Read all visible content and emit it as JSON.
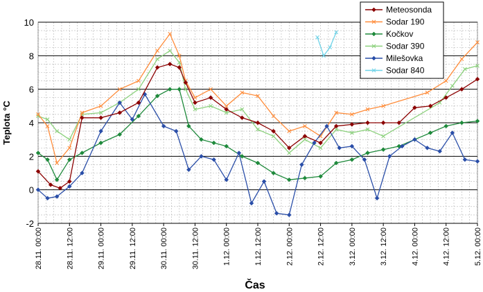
{
  "chart_data": {
    "type": "line",
    "title": "",
    "xlabel": "Čas",
    "ylabel": "Teplota °C",
    "ylim": [
      -2,
      10
    ],
    "yticks": [
      -2,
      0,
      2,
      4,
      6,
      8,
      10
    ],
    "xlim": [
      0,
      7
    ],
    "xtick_labels": [
      "28.11. 00:00",
      "28.11. 12:00",
      "29.11. 00:00",
      "29.11. 12:00",
      "30.11. 00:00",
      "30.11. 12:00",
      "1.12. 00:00",
      "1.12. 12:00",
      "2.12. 00:00",
      "2.12. 12:00",
      "3.12. 00:00",
      "3.12. 12:00",
      "4.12. 00:00",
      "4.12. 12:00",
      "5.12. 00:00"
    ],
    "grid": true,
    "legend_position": "top-right",
    "series": [
      {
        "name": "Meteosonda",
        "color": "#8b0000",
        "marker": "diamond",
        "x": [
          0.0,
          0.2,
          0.35,
          0.5,
          0.7,
          1.0,
          1.3,
          1.6,
          1.9,
          2.1,
          2.25,
          2.35,
          2.5,
          2.75,
          3.0,
          3.25,
          3.5,
          3.75,
          4.0,
          4.25,
          4.5,
          4.75,
          5.0,
          5.25,
          5.5,
          5.75,
          6.0,
          6.25,
          6.5,
          6.75,
          7.0
        ],
        "values": [
          1.1,
          0.3,
          0.1,
          0.5,
          4.3,
          4.3,
          4.6,
          5.2,
          7.3,
          7.5,
          7.3,
          6.4,
          5.2,
          5.5,
          4.8,
          4.3,
          4.0,
          3.5,
          2.5,
          3.2,
          2.8,
          3.8,
          3.9,
          4.0,
          4.0,
          4.0,
          4.9,
          5.0,
          5.5,
          6.0,
          6.6
        ]
      },
      {
        "name": "Sodar 190",
        "color": "#ff8c3a",
        "marker": "x",
        "x": [
          0.0,
          0.15,
          0.3,
          0.5,
          0.7,
          1.0,
          1.3,
          1.6,
          1.9,
          2.1,
          2.25,
          2.35,
          2.5,
          2.75,
          3.0,
          3.25,
          3.5,
          3.75,
          4.0,
          4.25,
          4.5,
          4.75,
          5.0,
          5.25,
          5.5,
          6.2,
          6.5,
          6.75,
          7.0
        ],
        "values": [
          4.5,
          3.8,
          1.6,
          2.5,
          4.6,
          5.0,
          6.0,
          6.5,
          8.3,
          9.3,
          8.0,
          6.5,
          5.5,
          6.0,
          5.0,
          5.8,
          5.6,
          4.4,
          3.5,
          3.8,
          3.2,
          4.6,
          4.5,
          4.8,
          5.0,
          5.8,
          6.5,
          7.8,
          8.8
        ]
      },
      {
        "name": "Kočkov",
        "color": "#1f8a3c",
        "marker": "diamond",
        "x": [
          0.0,
          0.15,
          0.3,
          0.5,
          0.7,
          1.0,
          1.3,
          1.6,
          1.9,
          2.1,
          2.25,
          2.4,
          2.6,
          2.8,
          3.0,
          3.25,
          3.5,
          3.75,
          4.0,
          4.25,
          4.5,
          4.75,
          5.0,
          5.25,
          5.5,
          5.75,
          6.0,
          6.25,
          6.5,
          6.75,
          7.0
        ],
        "values": [
          2.2,
          1.8,
          0.6,
          1.8,
          2.2,
          2.8,
          3.3,
          4.4,
          5.6,
          6.0,
          6.0,
          3.8,
          3.0,
          2.8,
          2.6,
          2.0,
          1.6,
          1.0,
          0.6,
          0.7,
          0.8,
          1.6,
          1.8,
          2.2,
          2.4,
          2.6,
          3.0,
          3.4,
          3.8,
          4.0,
          4.1
        ]
      },
      {
        "name": "Sodar 390",
        "color": "#8cd17d",
        "marker": "x",
        "x": [
          0.0,
          0.15,
          0.3,
          0.5,
          0.7,
          1.0,
          1.3,
          1.6,
          1.9,
          2.1,
          2.25,
          2.35,
          2.5,
          2.75,
          3.0,
          3.25,
          3.5,
          3.75,
          4.0,
          4.25,
          4.5,
          4.75,
          5.0,
          5.25,
          5.5,
          6.4,
          6.6,
          6.8,
          7.0
        ],
        "values": [
          4.4,
          4.2,
          3.5,
          3.0,
          4.5,
          4.6,
          5.2,
          6.0,
          7.8,
          8.3,
          7.6,
          6.0,
          4.8,
          5.0,
          4.6,
          4.8,
          3.6,
          3.2,
          2.2,
          3.0,
          2.5,
          3.6,
          3.4,
          3.6,
          3.2,
          5.2,
          6.2,
          7.2,
          7.4
        ]
      },
      {
        "name": "Milešovka",
        "color": "#2a4ea8",
        "marker": "diamond",
        "x": [
          0.0,
          0.15,
          0.3,
          0.5,
          0.7,
          1.0,
          1.3,
          1.5,
          1.7,
          2.0,
          2.2,
          2.4,
          2.6,
          2.8,
          3.0,
          3.2,
          3.4,
          3.6,
          3.8,
          4.0,
          4.2,
          4.4,
          4.6,
          4.8,
          5.0,
          5.2,
          5.4,
          5.6,
          5.8,
          6.0,
          6.2,
          6.4,
          6.6,
          6.8,
          7.0
        ],
        "values": [
          0.0,
          -0.5,
          -0.4,
          0.2,
          1.0,
          3.5,
          5.2,
          4.2,
          5.7,
          3.8,
          3.5,
          1.2,
          2.0,
          1.8,
          0.6,
          2.2,
          -0.8,
          0.5,
          -1.4,
          -1.5,
          1.5,
          2.8,
          3.8,
          2.5,
          2.6,
          1.8,
          -0.5,
          2.0,
          2.6,
          3.0,
          2.5,
          2.3,
          3.4,
          1.8,
          1.7
        ]
      },
      {
        "name": "Sodar 840",
        "color": "#6fd3e8",
        "marker": "x",
        "x": [
          4.45,
          4.55,
          4.65,
          4.75
        ],
        "values": [
          9.1,
          8.0,
          8.5,
          9.4
        ]
      }
    ]
  }
}
